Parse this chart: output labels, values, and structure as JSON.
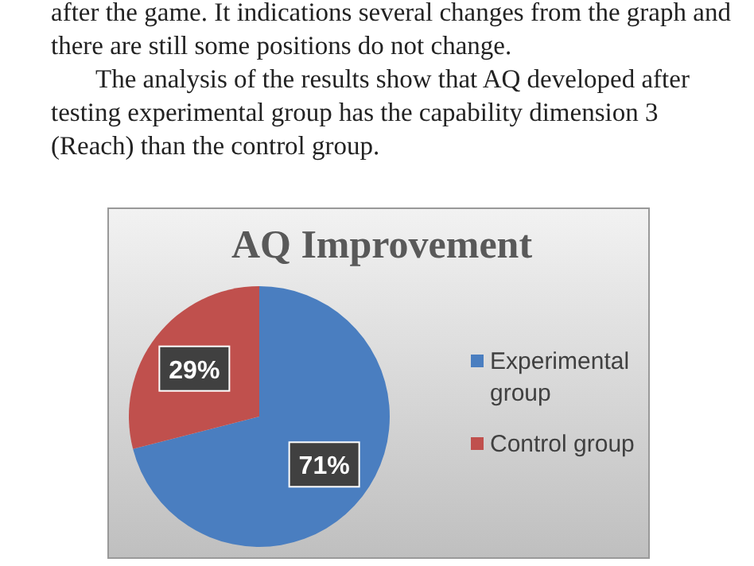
{
  "chart_data": {
    "type": "pie",
    "title": "AQ Improvement",
    "categories": [
      "Experimental group",
      "Control group"
    ],
    "values": [
      71,
      29
    ],
    "colors": [
      "#4a7ec0",
      "#c0504d"
    ],
    "value_labels": [
      "71%",
      "29%"
    ],
    "legend": "right",
    "annotations": [
      "after the game. It indications several changes from the graph and",
      "there are still some positions do not change.",
      "The analysis of the results show that AQ developed after",
      "testing experimental group has the capability dimension 3",
      "(Reach) than the control group."
    ]
  }
}
